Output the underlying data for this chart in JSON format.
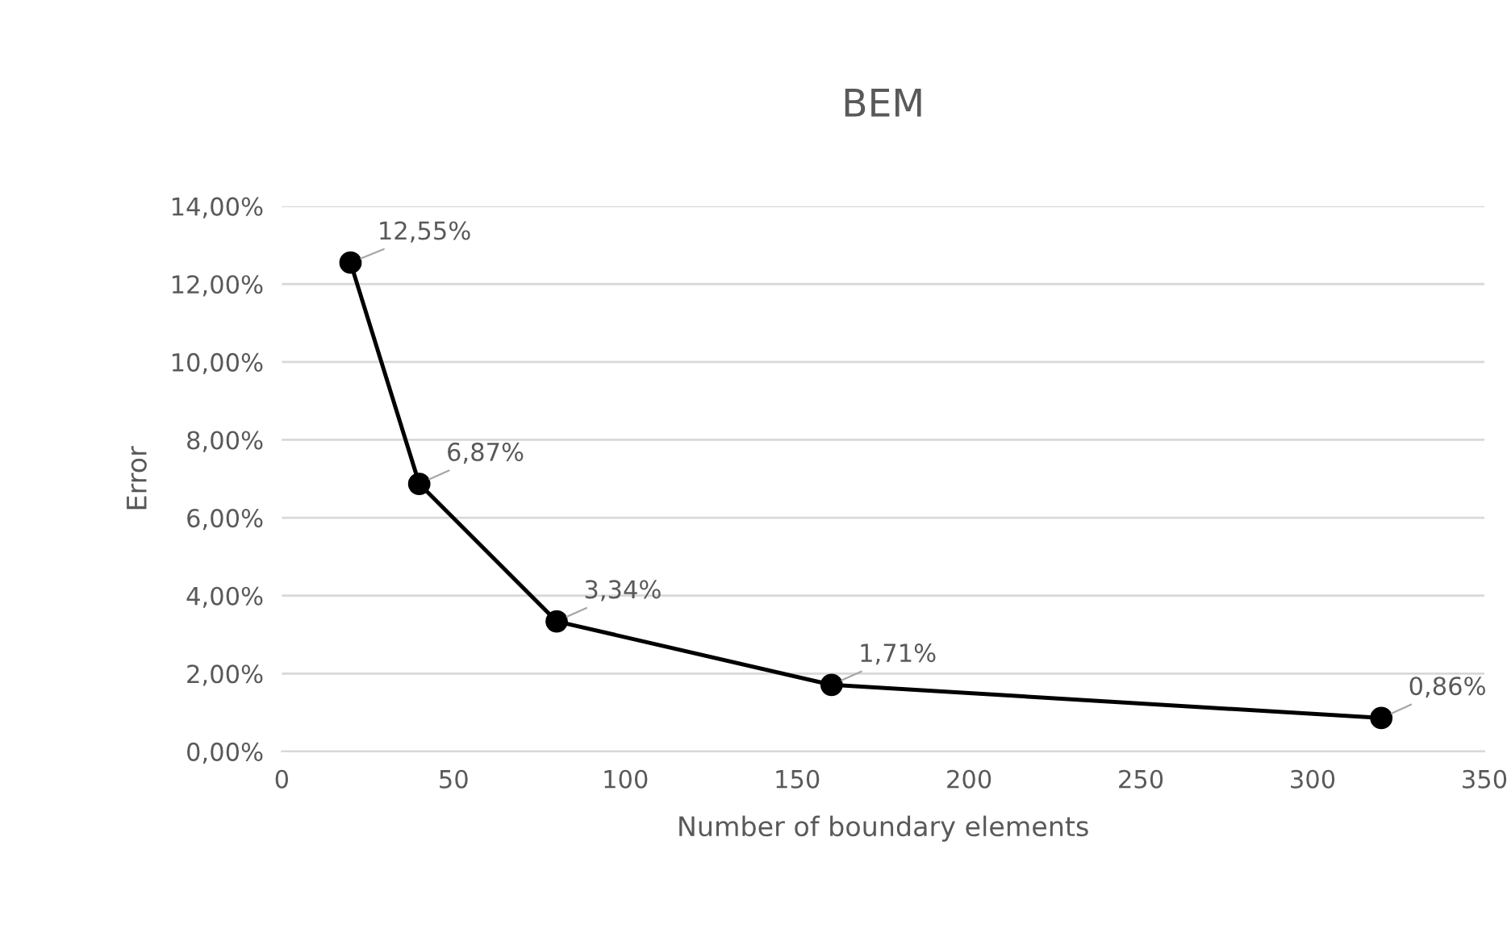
{
  "chart_data": {
    "type": "line",
    "title": "BEM",
    "xlabel": "Number of boundary elements",
    "ylabel": "Error",
    "x": [
      20,
      40,
      80,
      160,
      320
    ],
    "series": [
      {
        "color": "#000000",
        "values": [
          12.55,
          6.87,
          3.34,
          1.71,
          0.86
        ],
        "value_labels": [
          "12,55%",
          "6,87%",
          "3,34%",
          "1,71%",
          "0,86%"
        ]
      }
    ],
    "xlim": [
      0,
      350
    ],
    "xticks": [
      0,
      50,
      100,
      150,
      200,
      250,
      300,
      350
    ],
    "ylim": [
      0,
      14
    ],
    "yticks": [
      {
        "value": 0,
        "label": "0,00%"
      },
      {
        "value": 2,
        "label": "2,00%"
      },
      {
        "value": 4,
        "label": "4,00%"
      },
      {
        "value": 6,
        "label": "6,00%"
      },
      {
        "value": 8,
        "label": "8,00%"
      },
      {
        "value": 10,
        "label": "10,00%"
      },
      {
        "value": 12,
        "label": "12,00%"
      },
      {
        "value": 14,
        "label": "14,00%"
      }
    ],
    "grid": "y",
    "marker": "circle",
    "line_style": "solid"
  }
}
